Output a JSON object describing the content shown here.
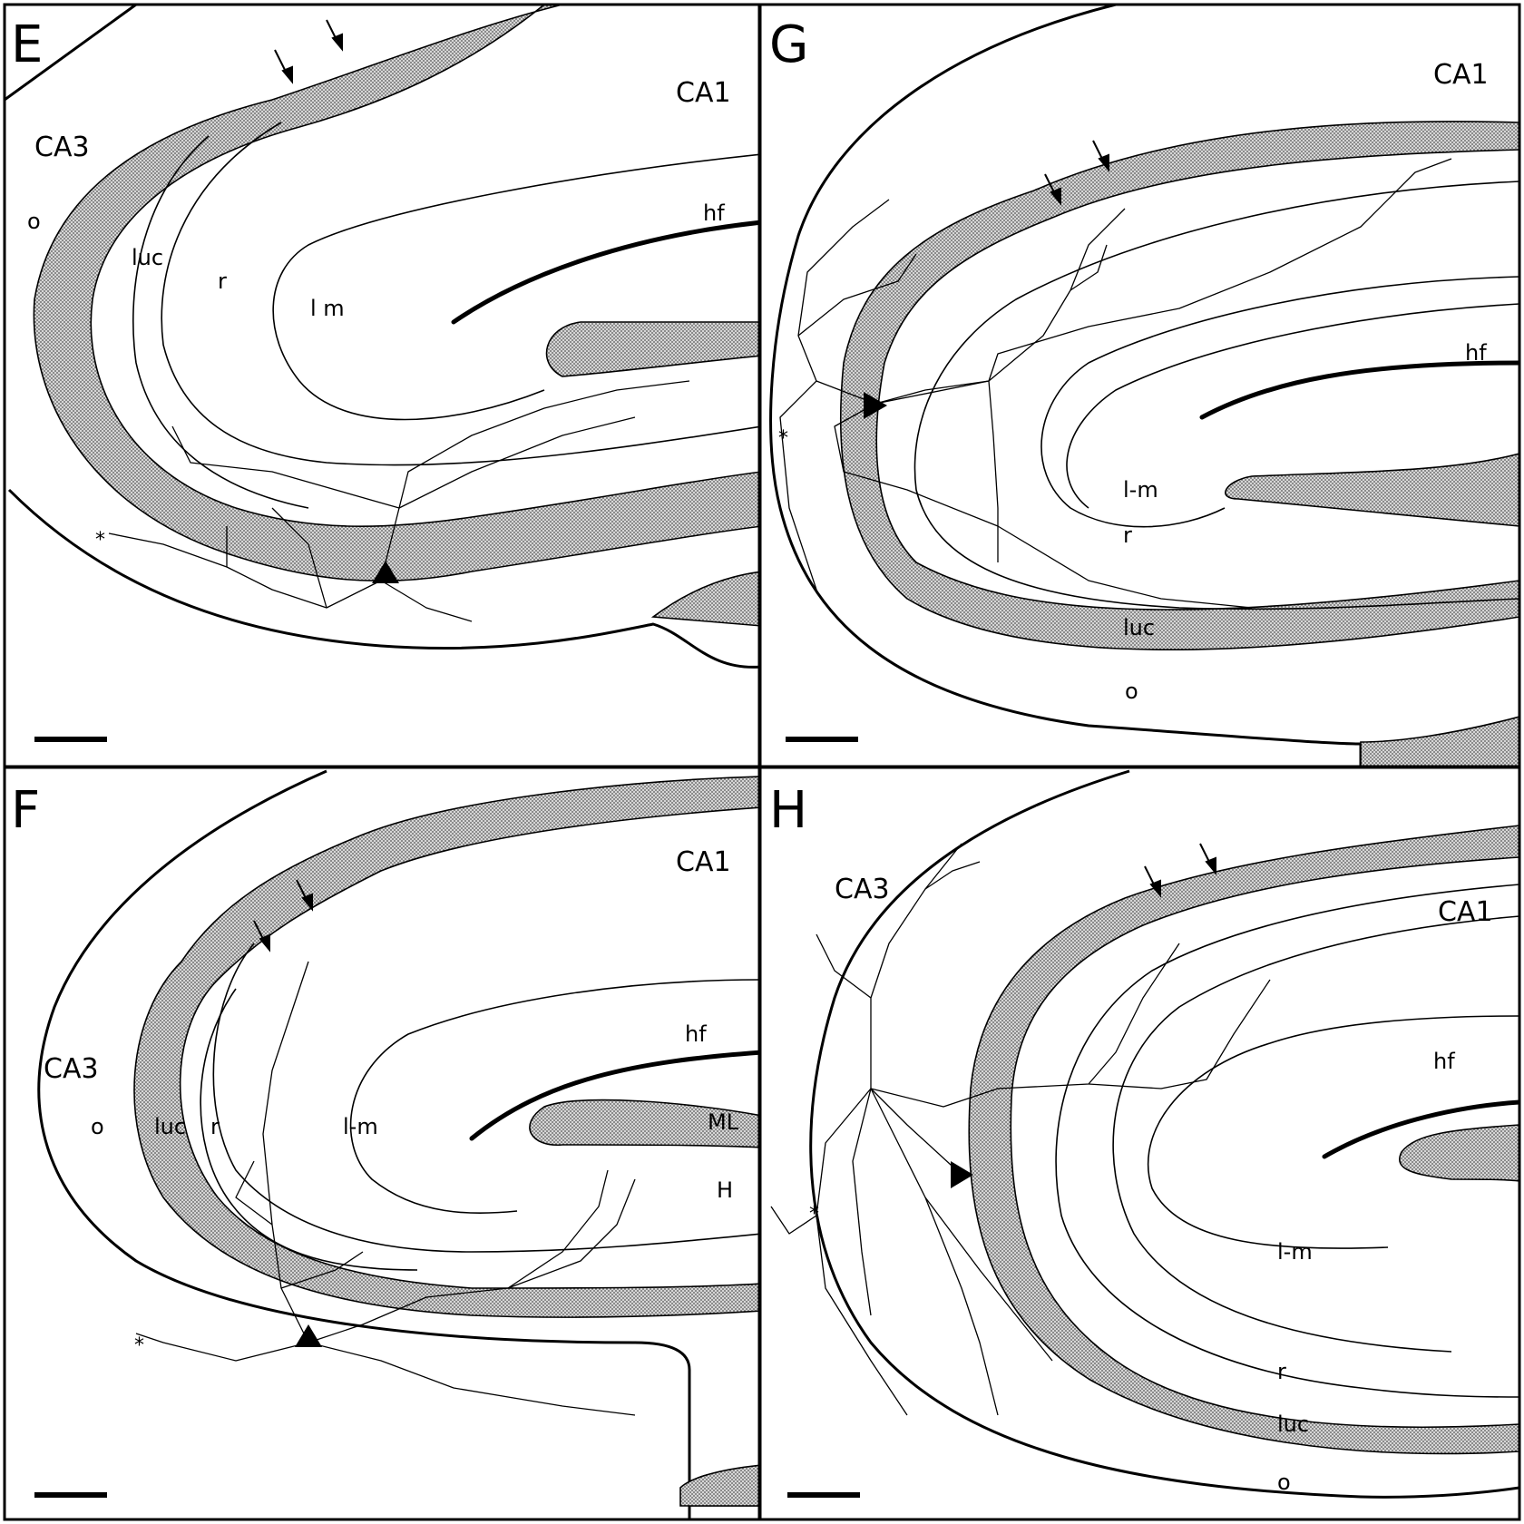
{
  "figure": {
    "panels": [
      {
        "id": "E",
        "letter": "E",
        "labels": {
          "ca3": "CA3",
          "ca1": "CA1",
          "o": "o",
          "luc": "luc",
          "r": "r",
          "lm": "l m",
          "hf": "hf",
          "star": "*"
        }
      },
      {
        "id": "G",
        "letter": "G",
        "labels": {
          "ca1": "CA1",
          "hf": "hf",
          "lm": "l-m",
          "r": "r",
          "luc": "luc",
          "o": "o",
          "star": "*"
        }
      },
      {
        "id": "F",
        "letter": "F",
        "labels": {
          "ca3": "CA3",
          "ca1": "CA1",
          "o": "o",
          "luc": "luc",
          "r": "r",
          "lm": "l-m",
          "hf": "hf",
          "ml": "ML",
          "h": "H",
          "star": "*"
        }
      },
      {
        "id": "H",
        "letter": "H",
        "labels": {
          "ca3": "CA3",
          "ca1": "CA1",
          "hf": "hf",
          "lm": "l-m",
          "r": "r",
          "luc": "luc",
          "o": "o",
          "star": "*"
        }
      }
    ]
  },
  "colors": {
    "ink": "#000000",
    "paper": "#ffffff",
    "stipple": "#9a9a9a"
  },
  "icons": {
    "soma": "filled-triangle-icon",
    "arrow": "down-arrow-icon",
    "scale": "scale-bar"
  }
}
